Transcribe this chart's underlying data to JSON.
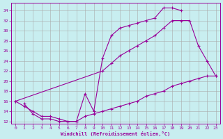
{
  "xlabel": "Windchill (Refroidissement éolien,°C)",
  "bg_color": "#c8eef0",
  "line_color": "#990099",
  "grid_color": "#aaaaaa",
  "xlim": [
    -0.5,
    23.5
  ],
  "ylim": [
    11.5,
    35.5
  ],
  "yticks": [
    12,
    14,
    16,
    18,
    20,
    22,
    24,
    26,
    28,
    30,
    32,
    34
  ],
  "xticks": [
    0,
    1,
    2,
    3,
    4,
    5,
    6,
    7,
    8,
    9,
    10,
    11,
    12,
    13,
    14,
    15,
    16,
    17,
    18,
    19,
    20,
    21,
    22,
    23
  ],
  "curve1_x": [
    0,
    1,
    2,
    3,
    4,
    5,
    6,
    7,
    8,
    9,
    10,
    11,
    12,
    13,
    14,
    15,
    16,
    17,
    18,
    19
  ],
  "curve1_y": [
    16.0,
    15.0,
    14.0,
    13.0,
    13.0,
    12.5,
    12.0,
    12.0,
    17.5,
    14.0,
    24.5,
    29.0,
    30.5,
    31.0,
    31.5,
    32.0,
    32.5,
    34.5,
    34.5,
    34.0
  ],
  "curve2_x": [
    0,
    10,
    11,
    12,
    13,
    14,
    15,
    16,
    17,
    18,
    19,
    20,
    21,
    22,
    23
  ],
  "curve2_y": [
    16.0,
    22.0,
    23.5,
    25.0,
    26.0,
    27.0,
    28.0,
    29.0,
    30.5,
    32.0,
    32.0,
    32.0,
    27.0,
    24.0,
    21.0
  ],
  "curve3_x": [
    1,
    2,
    3,
    4,
    5,
    6,
    7,
    8,
    9,
    10,
    11,
    12,
    13,
    14,
    15,
    16,
    17,
    18,
    19,
    20,
    21,
    22,
    23
  ],
  "curve3_y": [
    15.5,
    13.5,
    12.5,
    12.5,
    12.0,
    12.0,
    12.0,
    13.0,
    13.5,
    14.0,
    14.5,
    15.0,
    15.5,
    16.0,
    17.0,
    17.5,
    18.0,
    19.0,
    19.5,
    20.0,
    20.5,
    21.0,
    21.0
  ]
}
